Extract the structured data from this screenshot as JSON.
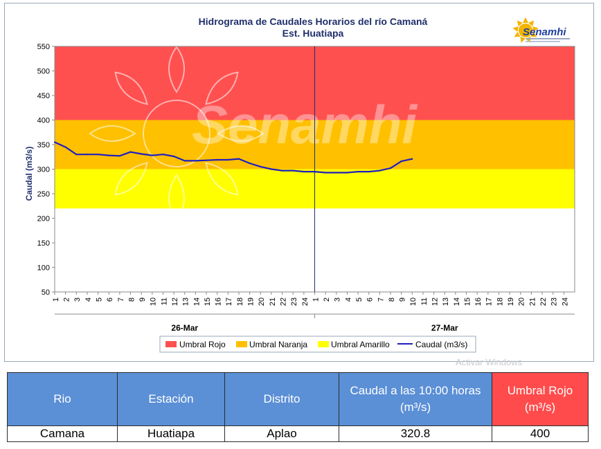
{
  "chart_data": {
    "type": "line",
    "title": "Hidrograma de Caudales Horarios del río Camaná",
    "subtitle": "Est. Huatiapa",
    "ylabel": "Caudal  (m3/s)",
    "ylim": [
      50,
      550
    ],
    "yticks": [
      50,
      100,
      150,
      200,
      250,
      300,
      350,
      400,
      450,
      500,
      550
    ],
    "x_tick_labels": [
      "1",
      "2",
      "3",
      "4",
      "5",
      "6",
      "7",
      "8",
      "9",
      "10",
      "11",
      "12",
      "13",
      "14",
      "15",
      "16",
      "17",
      "18",
      "19",
      "20",
      "21",
      "22",
      "23",
      "24",
      "1",
      "2",
      "3",
      "4",
      "5",
      "6",
      "7",
      "8",
      "9",
      "10",
      "11",
      "12",
      "13",
      "14",
      "15",
      "16",
      "17",
      "18",
      "19",
      "20",
      "21",
      "22",
      "23",
      "24"
    ],
    "day_labels": [
      "26-Mar",
      "27-Mar"
    ],
    "thresholds": [
      {
        "name": "Umbral Rojo",
        "from": 400,
        "to": 550,
        "color": "#ff5050"
      },
      {
        "name": "Umbral Naranja",
        "from": 300,
        "to": 400,
        "color": "#ffc000"
      },
      {
        "name": "Umbral Amarillo",
        "from": 220,
        "to": 300,
        "color": "#ffff00"
      }
    ],
    "series": [
      {
        "name": "Caudal (m3/s)",
        "color": "#1f1fbf",
        "values": [
          355,
          345,
          330,
          330,
          330,
          328,
          327,
          335,
          331,
          328,
          330,
          326,
          317,
          317,
          318,
          319,
          319,
          321,
          312,
          305,
          300,
          297,
          297,
          295,
          295,
          293,
          293,
          293,
          295,
          295,
          297,
          302,
          316,
          320.8
        ]
      }
    ],
    "legend": [
      "Umbral Rojo",
      "Umbral Naranja",
      "Umbral Amarillo",
      "Caudal (m3/s)"
    ],
    "legend_position": "bottom",
    "grid": false
  },
  "branding": {
    "logo_text": "Senamhi",
    "watermark_text": "Senamhi"
  },
  "overlay_text": "Activar Windows",
  "table": {
    "headers": [
      "Rio",
      "Estación",
      "Distrito",
      "Caudal a las 10:00 horas (m³/s)",
      "Umbral Rojo (m³/s)"
    ],
    "rows": [
      [
        "Camana",
        "Huatiapa",
        "Aplao",
        "320.8",
        "400"
      ]
    ]
  },
  "colors": {
    "header_blue": "#5b8fd6",
    "header_red": "#ff4b4b",
    "title_navy": "#1f2f6b",
    "line_blue": "#1f1fbf"
  }
}
